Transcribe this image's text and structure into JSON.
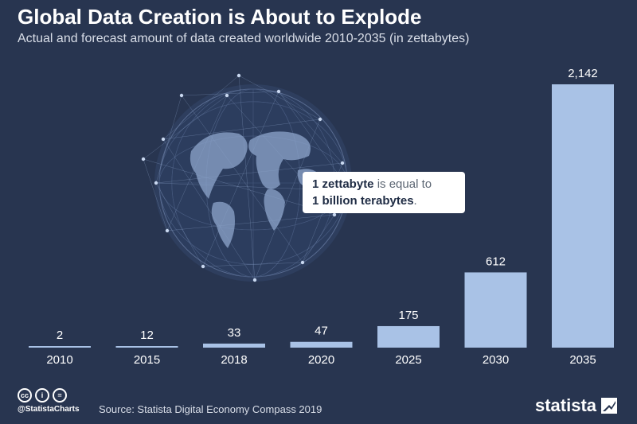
{
  "header": {
    "title": "Global Data Creation is About to Explode",
    "subtitle": "Actual and forecast amount of data created worldwide 2010-2035 (in zettabytes)"
  },
  "callout": {
    "part1": "1 zettabyte",
    "part2": " is equal to",
    "part3": "1 billion terabytes",
    "part4": "."
  },
  "footer": {
    "license_icons": [
      "cc-icon",
      "by-icon",
      "nd-icon"
    ],
    "license_glyphs": [
      "cc",
      "i",
      "="
    ],
    "handle": "@StatistaCharts",
    "source": "Source: Statista Digital Economy Compass 2019",
    "brand": "statista"
  },
  "colors": {
    "background": "#283550",
    "bar": "#a9c2e6",
    "text": "#ffffff"
  },
  "chart_data": {
    "type": "bar",
    "title": "Global Data Creation is About to Explode",
    "subtitle": "Actual and forecast amount of data created worldwide 2010-2035 (in zettabytes)",
    "categories": [
      "2010",
      "2015",
      "2018",
      "2020",
      "2025",
      "2030",
      "2035"
    ],
    "values": [
      2,
      12,
      33,
      47,
      175,
      612,
      2142
    ],
    "value_labels": [
      "2",
      "12",
      "33",
      "47",
      "175",
      "612",
      "2,142"
    ],
    "unit": "zettabytes",
    "ylim": [
      0,
      2142
    ],
    "grid": false,
    "legend": "none"
  }
}
